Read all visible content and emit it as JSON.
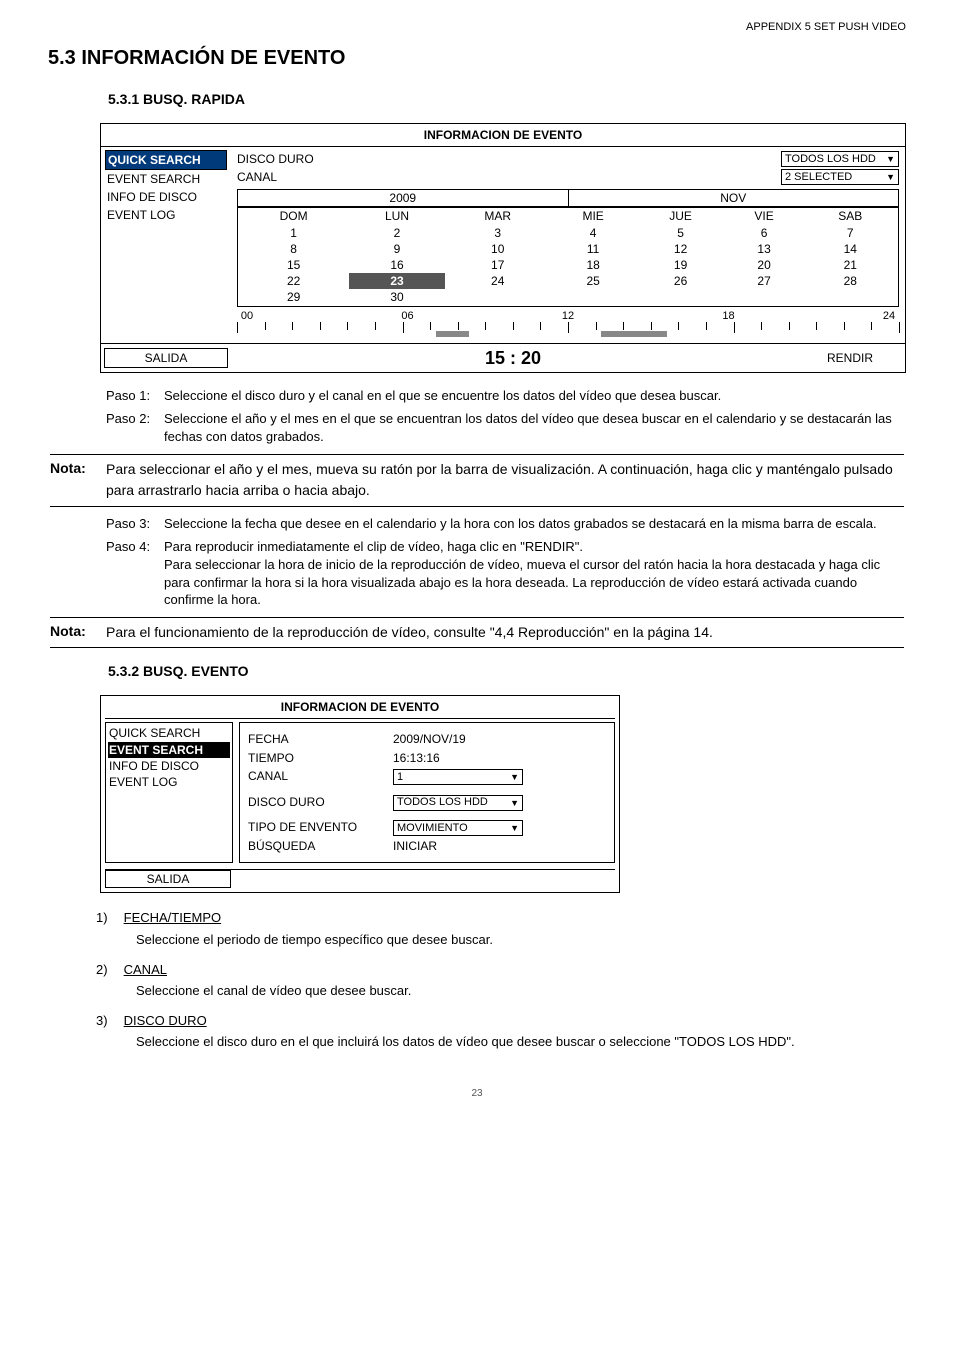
{
  "appendix_header": "APPENDIX 5 SET PUSH VIDEO",
  "section_title": "5.3 INFORMACIÓN DE EVENTO",
  "sub1_title": "5.3.1 BUSQ. RAPIDA",
  "panel1": {
    "title": "INFORMACION DE EVENTO",
    "sidebar": [
      "QUICK SEARCH",
      "EVENT SEARCH",
      "INFO DE DISCO",
      "EVENT LOG"
    ],
    "sidebar_active_index": 0,
    "disco_label": "DISCO DURO",
    "disco_value": "TODOS LOS HDD",
    "canal_label": "CANAL",
    "canal_value": "2 SELECTED",
    "year": "2009",
    "month": "NOV",
    "days_head": [
      "DOM",
      "LUN",
      "MAR",
      "MIE",
      "JUE",
      "VIE",
      "SAB"
    ],
    "weeks": [
      [
        "1",
        "2",
        "3",
        "4",
        "5",
        "6",
        "7"
      ],
      [
        "8",
        "9",
        "10",
        "11",
        "12",
        "13",
        "14"
      ],
      [
        "15",
        "16",
        "17",
        "18",
        "19",
        "20",
        "21"
      ],
      [
        "22",
        "23",
        "24",
        "25",
        "26",
        "27",
        "28"
      ],
      [
        "29",
        "30",
        "",
        "",
        "",
        "",
        ""
      ]
    ],
    "highlight_day": "23",
    "timeline_labels": [
      "00",
      "06",
      "12",
      "18",
      "24"
    ],
    "time_display": "15 : 20",
    "salida": "SALIDA",
    "rendir": "RENDIR"
  },
  "pasos1": [
    {
      "label": "Paso 1:",
      "text": "Seleccione el disco duro y el canal en el que se encuentre los datos del vídeo que desea buscar."
    },
    {
      "label": "Paso 2:",
      "text": "Seleccione el año y el mes en el que se encuentran los datos del vídeo que desea buscar en el calendario y se destacarán las fechas con datos grabados."
    }
  ],
  "nota1": {
    "label": "Nota:",
    "text": "Para seleccionar el año y el mes, mueva su ratón por la barra de visualización. A continuación, haga clic y manténgalo pulsado para arrastrarlo hacia arriba o hacia abajo."
  },
  "pasos2": [
    {
      "label": "Paso 3:",
      "text": "Seleccione la fecha que desee en el calendario y la hora con los datos grabados se destacará en la misma barra de escala."
    },
    {
      "label": "Paso 4:",
      "text": "Para reproducir inmediatamente el clip de vídeo, haga clic en \"RENDIR\".\nPara seleccionar la hora de inicio de la reproducción de vídeo, mueva el cursor del ratón hacia la hora destacada y haga clic para confirmar la hora si la hora visualizada abajo es la hora deseada. La reproducción de vídeo estará activada cuando confirme la hora."
    }
  ],
  "nota2": {
    "label": "Nota:",
    "text": "Para el funcionamiento de la reproducción de vídeo, consulte \"4,4 Reproducción\" en la página 14."
  },
  "sub2_title": "5.3.2 BUSQ. EVENTO",
  "panel2": {
    "title": "INFORMACION DE EVENTO",
    "sidebar": [
      "QUICK SEARCH",
      "EVENT SEARCH",
      "INFO DE DISCO",
      "EVENT LOG"
    ],
    "sidebar_active_index": 1,
    "rows": [
      {
        "label": "FECHA",
        "value": "2009/NOV/19",
        "type": "text"
      },
      {
        "label": "TIEMPO",
        "value": "16:13:16",
        "type": "text"
      },
      {
        "label": "CANAL",
        "value": "1",
        "type": "select"
      },
      {
        "label": "DISCO DURO",
        "value": "TODOS LOS HDD",
        "type": "select"
      },
      {
        "label": "TIPO DE ENVENTO",
        "value": "MOVIMIENTO",
        "type": "select"
      },
      {
        "label": "BÚSQUEDA",
        "value": "INICIAR",
        "type": "text"
      }
    ],
    "salida": "SALIDA"
  },
  "defs": [
    {
      "num": "1)",
      "term": "FECHA/TIEMPO",
      "desc": "Seleccione el periodo de tiempo específico que desee buscar."
    },
    {
      "num": "2)",
      "term": "CANAL",
      "desc": "Seleccione el canal de vídeo que desee buscar."
    },
    {
      "num": "3)",
      "term": "DISCO DURO",
      "desc": "Seleccione el disco duro en el que incluirá los datos de vídeo que desee buscar o seleccione \"TODOS LOS HDD\"."
    }
  ],
  "page_number": "23",
  "colors": {
    "sidebar_active_bg": "#003a7a",
    "sidebar_active_fg": "#ffffff",
    "highlight_bg": "#555555",
    "timeline_bar": "#888888"
  }
}
